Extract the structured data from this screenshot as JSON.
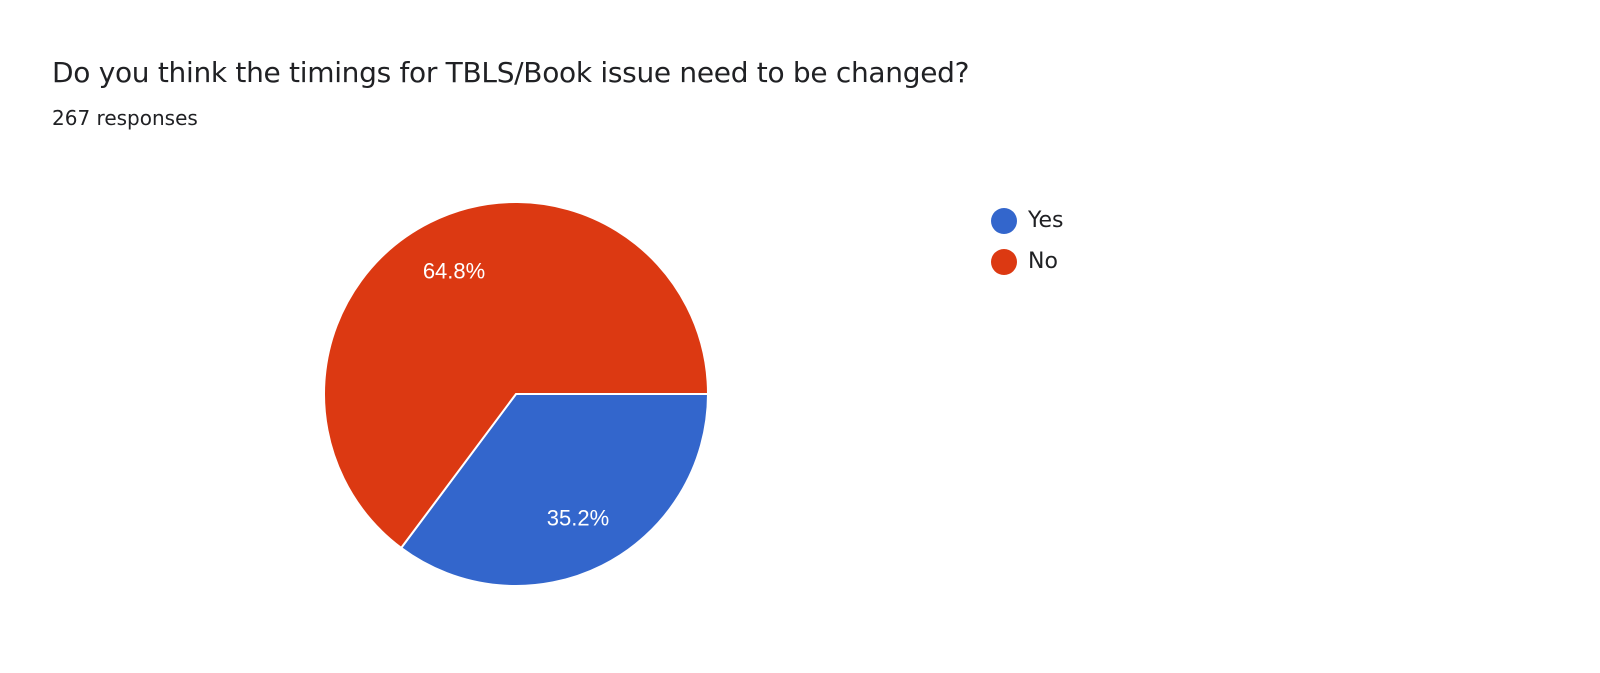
{
  "header": {
    "title": "Do you think the timings for TBLS/Book issue need to be changed?",
    "subtitle": "267 responses"
  },
  "chart_data": {
    "type": "pie",
    "title": "Do you think the timings for TBLS/Book issue need to be changed?",
    "subtitle": "267 responses",
    "legend_position": "right",
    "slices": [
      {
        "label": "Yes",
        "value": 35.2,
        "display": "35.2%",
        "color": "#3366cc"
      },
      {
        "label": "No",
        "value": 64.8,
        "display": "64.8%",
        "color": "#dc3912"
      }
    ]
  }
}
